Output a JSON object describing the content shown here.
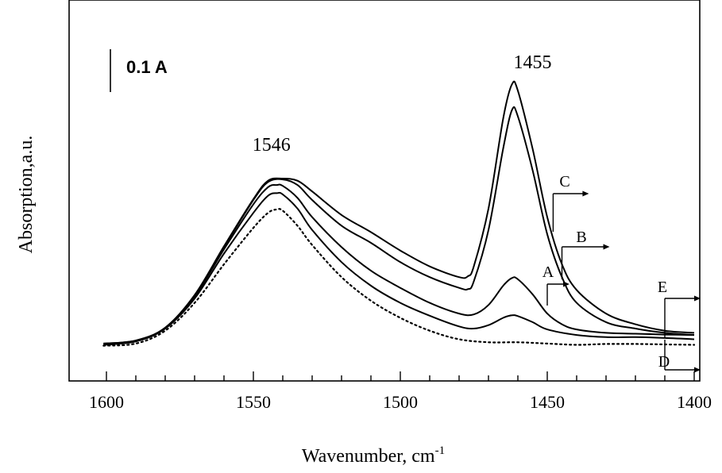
{
  "chart_data": {
    "type": "line",
    "xlabel": "Wavenumber, cm",
    "xlabel_sup": "-1",
    "ylabel": "Absorption,a.u.",
    "xlim": [
      1600,
      1400
    ],
    "x_reversed": true,
    "xticks": [
      1600,
      1550,
      1500,
      1450,
      1400
    ],
    "scale_bar": {
      "label": "0.1 A",
      "value": 0.1
    },
    "peak_labels": [
      {
        "x": 1546,
        "text": "1546"
      },
      {
        "x": 1455,
        "text": "1455"
      }
    ],
    "curve_labels": [
      {
        "text": "A",
        "x": 1450
      },
      {
        "text": "B",
        "x": 1445
      },
      {
        "text": "C",
        "x": 1448
      },
      {
        "text": "D",
        "x": 1410
      },
      {
        "text": "E",
        "x": 1410
      }
    ],
    "series": [
      {
        "style": "dotted",
        "x": [
          1601,
          1590,
          1580,
          1570,
          1560,
          1550,
          1545,
          1542,
          1540,
          1535,
          1530,
          1520,
          1510,
          1500,
          1490,
          1480,
          1470,
          1460,
          1450,
          1440,
          1430,
          1420,
          1410,
          1400
        ],
        "y": [
          0.01,
          0.015,
          0.045,
          0.11,
          0.2,
          0.285,
          0.32,
          0.328,
          0.325,
          0.29,
          0.245,
          0.17,
          0.115,
          0.075,
          0.045,
          0.025,
          0.018,
          0.018,
          0.015,
          0.012,
          0.014,
          0.014,
          0.013,
          0.012
        ]
      },
      {
        "style": "solid",
        "x": [
          1601,
          1590,
          1580,
          1570,
          1560,
          1550,
          1545,
          1542,
          1540,
          1535,
          1530,
          1520,
          1510,
          1500,
          1490,
          1480,
          1475,
          1470,
          1465,
          1462,
          1460,
          1455,
          1450,
          1440,
          1430,
          1420,
          1410,
          1400
        ],
        "y": [
          0.012,
          0.02,
          0.05,
          0.12,
          0.225,
          0.32,
          0.36,
          0.366,
          0.363,
          0.33,
          0.28,
          0.205,
          0.15,
          0.11,
          0.08,
          0.055,
          0.05,
          0.058,
          0.075,
          0.081,
          0.079,
          0.065,
          0.048,
          0.035,
          0.03,
          0.03,
          0.028,
          0.025
        ]
      },
      {
        "style": "solid",
        "x": [
          1601,
          1590,
          1580,
          1570,
          1560,
          1550,
          1545,
          1542,
          1540,
          1535,
          1530,
          1520,
          1510,
          1500,
          1490,
          1480,
          1475,
          1470,
          1465,
          1462,
          1460,
          1455,
          1450,
          1445,
          1440,
          1430,
          1420,
          1410,
          1400
        ],
        "y": [
          0.012,
          0.02,
          0.05,
          0.125,
          0.235,
          0.34,
          0.38,
          0.385,
          0.383,
          0.355,
          0.31,
          0.24,
          0.185,
          0.145,
          0.11,
          0.085,
          0.083,
          0.105,
          0.15,
          0.168,
          0.165,
          0.13,
          0.085,
          0.06,
          0.048,
          0.04,
          0.038,
          0.036,
          0.035
        ]
      },
      {
        "style": "solid",
        "x": [
          1601,
          1590,
          1580,
          1570,
          1560,
          1550,
          1545,
          1540,
          1535,
          1530,
          1520,
          1510,
          1500,
          1490,
          1480,
          1477,
          1475,
          1470,
          1465,
          1462,
          1460,
          1455,
          1450,
          1445,
          1440,
          1430,
          1420,
          1410,
          1400
        ],
        "y": [
          0.015,
          0.022,
          0.052,
          0.128,
          0.24,
          0.35,
          0.392,
          0.398,
          0.385,
          0.35,
          0.29,
          0.25,
          0.205,
          0.17,
          0.145,
          0.142,
          0.16,
          0.28,
          0.47,
          0.56,
          0.545,
          0.42,
          0.27,
          0.17,
          0.11,
          0.065,
          0.05,
          0.04,
          0.035
        ]
      },
      {
        "style": "solid",
        "x": [
          1601,
          1590,
          1580,
          1570,
          1560,
          1550,
          1545,
          1540,
          1535,
          1530,
          1520,
          1510,
          1500,
          1490,
          1480,
          1477,
          1475,
          1470,
          1465,
          1462,
          1460,
          1455,
          1450,
          1445,
          1440,
          1430,
          1420,
          1410,
          1400
        ],
        "y": [
          0.015,
          0.022,
          0.052,
          0.128,
          0.242,
          0.352,
          0.395,
          0.4,
          0.395,
          0.37,
          0.315,
          0.275,
          0.232,
          0.195,
          0.17,
          0.172,
          0.195,
          0.33,
          0.54,
          0.62,
          0.605,
          0.47,
          0.31,
          0.2,
          0.14,
          0.085,
          0.06,
          0.045,
          0.04
        ]
      }
    ]
  }
}
